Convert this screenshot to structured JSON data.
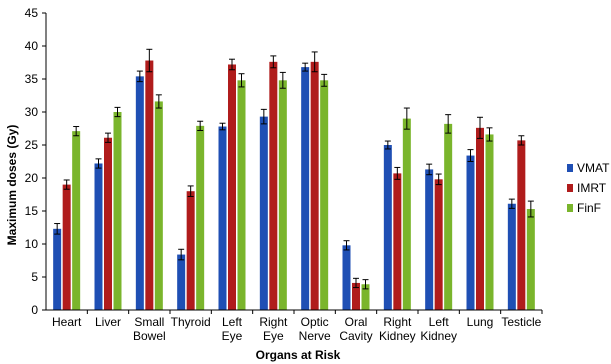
{
  "chart_data": {
    "type": "bar",
    "title": "",
    "xlabel": "Organs at Risk",
    "ylabel": "Maximum doses (Gy)",
    "ylim": [
      0,
      45
    ],
    "yticks": [
      0,
      5,
      10,
      15,
      20,
      25,
      30,
      35,
      40,
      45
    ],
    "grid": false,
    "legend_position": "right",
    "categories": [
      [
        "Heart"
      ],
      [
        "Liver"
      ],
      [
        "Small",
        "Bowel"
      ],
      [
        "Thyroid"
      ],
      [
        "Left",
        "Eye"
      ],
      [
        "Right",
        "Eye"
      ],
      [
        "Optic",
        "Nerve"
      ],
      [
        "Oral",
        "Cavity"
      ],
      [
        "Right",
        "Kidney"
      ],
      [
        "Left",
        "Kidney"
      ],
      [
        "Lung"
      ],
      [
        "Testicle"
      ]
    ],
    "series": [
      {
        "name": "VMAT",
        "color": "#1f4fb4",
        "values": [
          12.3,
          22.2,
          35.4,
          8.4,
          27.8,
          29.3,
          36.8,
          9.8,
          25.0,
          21.3,
          23.4,
          16.1
        ],
        "errors": [
          0.8,
          0.7,
          0.8,
          0.8,
          0.5,
          1.1,
          0.6,
          0.7,
          0.6,
          0.8,
          0.9,
          0.7
        ]
      },
      {
        "name": "IMRT",
        "color": "#b01c1c",
        "values": [
          19.0,
          26.1,
          37.8,
          18.0,
          37.2,
          37.6,
          37.6,
          4.1,
          20.7,
          19.8,
          27.6,
          25.7
        ],
        "errors": [
          0.7,
          0.7,
          1.7,
          0.8,
          0.8,
          0.9,
          1.5,
          0.7,
          0.9,
          0.8,
          1.6,
          0.7
        ]
      },
      {
        "name": "FinF",
        "color": "#7ab52c",
        "values": [
          27.1,
          30.0,
          31.6,
          27.9,
          34.8,
          34.8,
          34.8,
          3.9,
          29.0,
          28.2,
          26.6,
          15.3
        ],
        "errors": [
          0.7,
          0.7,
          1.0,
          0.7,
          1.0,
          1.2,
          0.9,
          0.7,
          1.6,
          1.4,
          1.0,
          1.2
        ]
      }
    ]
  }
}
